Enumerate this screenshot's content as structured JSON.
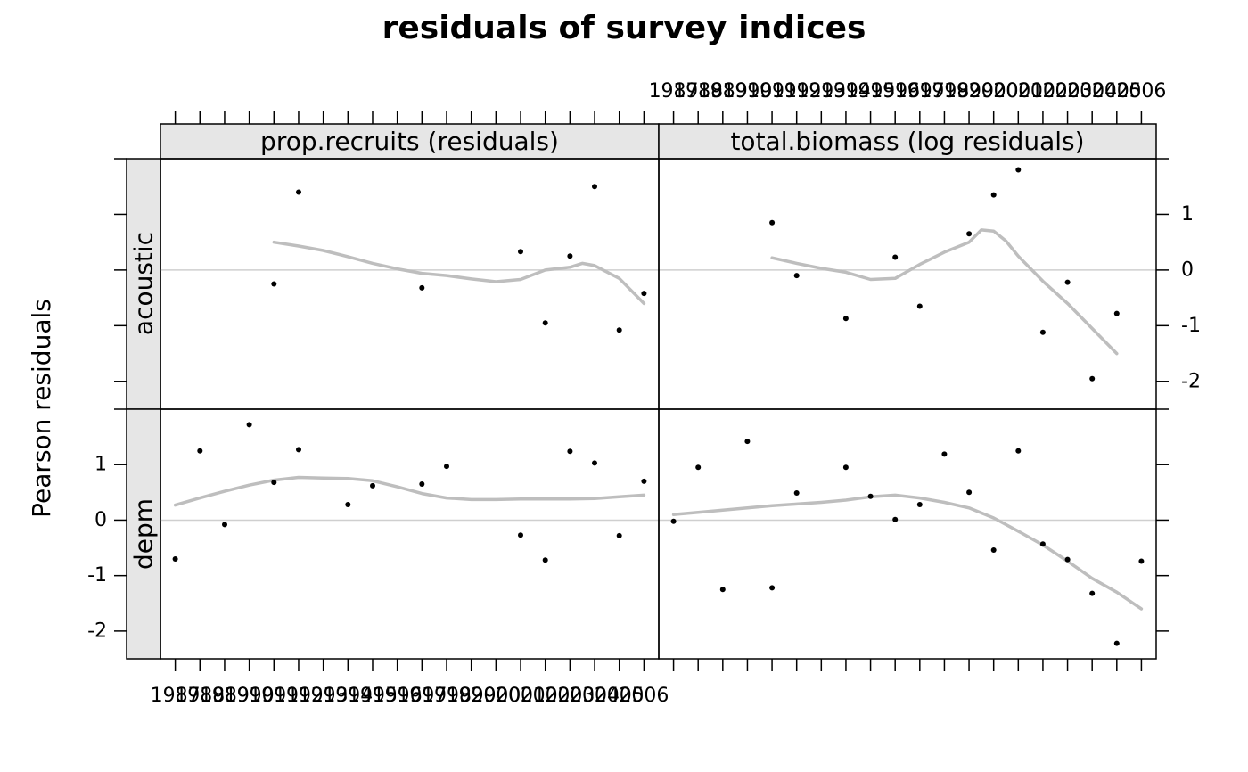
{
  "chart_data": {
    "type": "scatter",
    "title": "residuals of survey indices",
    "ylabel": "Pearson residuals",
    "xlabel": "",
    "x_ticks": [
      "1987",
      "1988",
      "1989",
      "1990",
      "1991",
      "1992",
      "1993",
      "1994",
      "1995",
      "1996",
      "1997",
      "1998",
      "1999",
      "2000",
      "2001",
      "2002",
      "2003",
      "2004",
      "2005",
      "2006"
    ],
    "xlim": [
      1986.4,
      2006.6
    ],
    "ylim": [
      -2.5,
      2
    ],
    "y_ticks": [
      -2,
      -1,
      0,
      1
    ],
    "grid": "horizontal reference line at 0",
    "columns": [
      "prop.recruits (residuals)",
      "total.biomass (log residuals)"
    ],
    "rows": [
      "depm",
      "acoustic"
    ],
    "point_color": "#000000",
    "smoother_color": "#bebebe",
    "panels": [
      {
        "row": "acoustic",
        "column": "prop.recruits (residuals)",
        "points": [
          [
            1991,
            -0.25
          ],
          [
            1992,
            1.4
          ],
          [
            1997,
            -0.32
          ],
          [
            2001,
            0.33
          ],
          [
            2002,
            -0.95
          ],
          [
            2003,
            0.25
          ],
          [
            2004,
            1.5
          ],
          [
            2005,
            -1.08
          ],
          [
            2006,
            -0.42
          ]
        ],
        "smoother": [
          [
            1991,
            0.5
          ],
          [
            1992,
            0.43
          ],
          [
            1993,
            0.35
          ],
          [
            1994,
            0.24
          ],
          [
            1995,
            0.12
          ],
          [
            1996,
            0.02
          ],
          [
            1997,
            -0.06
          ],
          [
            1998,
            -0.1
          ],
          [
            1999,
            -0.16
          ],
          [
            2000,
            -0.21
          ],
          [
            2001,
            -0.17
          ],
          [
            2002,
            0.0
          ],
          [
            2003,
            0.05
          ],
          [
            2003.5,
            0.12
          ],
          [
            2004,
            0.08
          ],
          [
            2005,
            -0.15
          ],
          [
            2006,
            -0.6
          ]
        ]
      },
      {
        "row": "acoustic",
        "column": "total.biomass (log residuals)",
        "points": [
          [
            1991,
            0.85
          ],
          [
            1992,
            -0.1
          ],
          [
            1994,
            -0.87
          ],
          [
            1996,
            0.23
          ],
          [
            1997,
            -0.65
          ],
          [
            1999,
            0.65
          ],
          [
            2000,
            1.35
          ],
          [
            2001,
            1.8
          ],
          [
            2002,
            -1.12
          ],
          [
            2003,
            -0.22
          ],
          [
            2004,
            -1.95
          ],
          [
            2005,
            -0.78
          ]
        ],
        "smoother": [
          [
            1991,
            0.22
          ],
          [
            1992,
            0.12
          ],
          [
            1993,
            0.03
          ],
          [
            1994,
            -0.04
          ],
          [
            1995,
            -0.17
          ],
          [
            1996,
            -0.15
          ],
          [
            1997,
            0.1
          ],
          [
            1998,
            0.32
          ],
          [
            1999,
            0.5
          ],
          [
            1999.5,
            0.72
          ],
          [
            2000,
            0.7
          ],
          [
            2000.5,
            0.52
          ],
          [
            2001,
            0.25
          ],
          [
            2002,
            -0.2
          ],
          [
            2003,
            -0.6
          ],
          [
            2004,
            -1.05
          ],
          [
            2005,
            -1.5
          ]
        ]
      },
      {
        "row": "depm",
        "column": "prop.recruits (residuals)",
        "points": [
          [
            1987,
            -0.7
          ],
          [
            1988,
            1.25
          ],
          [
            1989,
            -0.08
          ],
          [
            1990,
            1.72
          ],
          [
            1991,
            0.68
          ],
          [
            1992,
            1.27
          ],
          [
            1994,
            0.28
          ],
          [
            1995,
            0.62
          ],
          [
            1997,
            0.65
          ],
          [
            1998,
            0.97
          ],
          [
            2001,
            -0.27
          ],
          [
            2002,
            -0.72
          ],
          [
            2003,
            1.24
          ],
          [
            2004,
            1.03
          ],
          [
            2005,
            -0.28
          ],
          [
            2006,
            0.7
          ]
        ],
        "smoother": [
          [
            1987,
            0.27
          ],
          [
            1988,
            0.4
          ],
          [
            1989,
            0.52
          ],
          [
            1990,
            0.63
          ],
          [
            1991,
            0.72
          ],
          [
            1992,
            0.77
          ],
          [
            1993,
            0.76
          ],
          [
            1994,
            0.75
          ],
          [
            1995,
            0.71
          ],
          [
            1996,
            0.6
          ],
          [
            1997,
            0.48
          ],
          [
            1998,
            0.4
          ],
          [
            1999,
            0.37
          ],
          [
            2000,
            0.37
          ],
          [
            2001,
            0.38
          ],
          [
            2002,
            0.38
          ],
          [
            2003,
            0.38
          ],
          [
            2004,
            0.39
          ],
          [
            2005,
            0.42
          ],
          [
            2006,
            0.45
          ]
        ]
      },
      {
        "row": "depm",
        "column": "total.biomass (log residuals)",
        "points": [
          [
            1987,
            -0.02
          ],
          [
            1988,
            0.95
          ],
          [
            1989,
            -1.25
          ],
          [
            1990,
            1.42
          ],
          [
            1991,
            -1.22
          ],
          [
            1992,
            0.49
          ],
          [
            1994,
            0.95
          ],
          [
            1995,
            0.43
          ],
          [
            1996,
            0.01
          ],
          [
            1997,
            0.28
          ],
          [
            1998,
            1.19
          ],
          [
            1999,
            0.5
          ],
          [
            2000,
            -0.54
          ],
          [
            2001,
            1.25
          ],
          [
            2002,
            -0.43
          ],
          [
            2003,
            -0.71
          ],
          [
            2004,
            -1.32
          ],
          [
            2005,
            -2.22
          ],
          [
            2006,
            -0.74
          ]
        ],
        "smoother": [
          [
            1987,
            0.1
          ],
          [
            1988,
            0.14
          ],
          [
            1989,
            0.18
          ],
          [
            1990,
            0.22
          ],
          [
            1991,
            0.26
          ],
          [
            1992,
            0.29
          ],
          [
            1993,
            0.32
          ],
          [
            1994,
            0.36
          ],
          [
            1995,
            0.42
          ],
          [
            1996,
            0.45
          ],
          [
            1997,
            0.4
          ],
          [
            1998,
            0.32
          ],
          [
            1999,
            0.22
          ],
          [
            2000,
            0.04
          ],
          [
            2001,
            -0.2
          ],
          [
            2002,
            -0.45
          ],
          [
            2003,
            -0.74
          ],
          [
            2004,
            -1.05
          ],
          [
            2005,
            -1.3
          ],
          [
            2006,
            -1.6
          ]
        ]
      }
    ]
  }
}
